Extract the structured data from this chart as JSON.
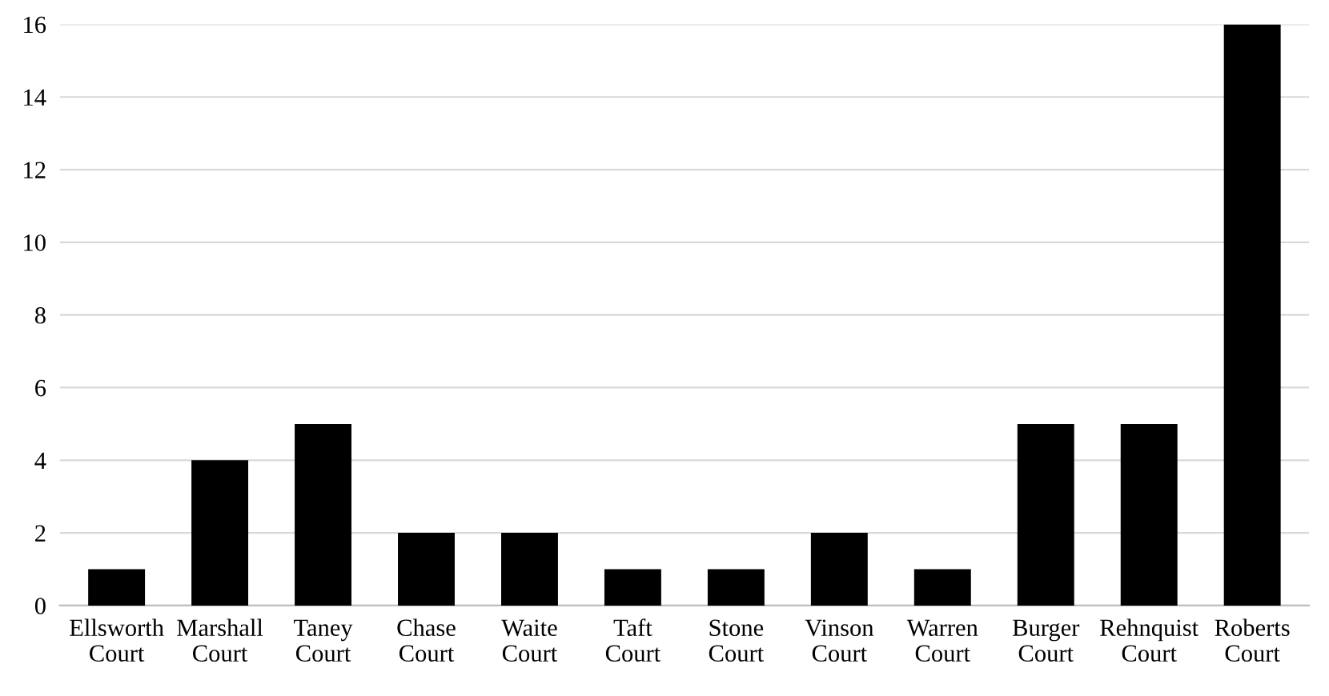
{
  "chart_data": {
    "type": "bar",
    "categories": [
      "Ellsworth Court",
      "Marshall Court",
      "Taney Court",
      "Chase Court",
      "Waite Court",
      "Taft Court",
      "Stone Court",
      "Vinson Court",
      "Warren Court",
      "Burger Court",
      "Rehnquist Court",
      "Roberts Court"
    ],
    "values": [
      1,
      4,
      5,
      2,
      2,
      1,
      1,
      2,
      1,
      5,
      5,
      16
    ],
    "color": "#000000",
    "ylim": [
      0,
      16
    ],
    "yticks": [
      0,
      2,
      4,
      6,
      8,
      10,
      12,
      14,
      16
    ],
    "grid": "y",
    "legend": false
  }
}
